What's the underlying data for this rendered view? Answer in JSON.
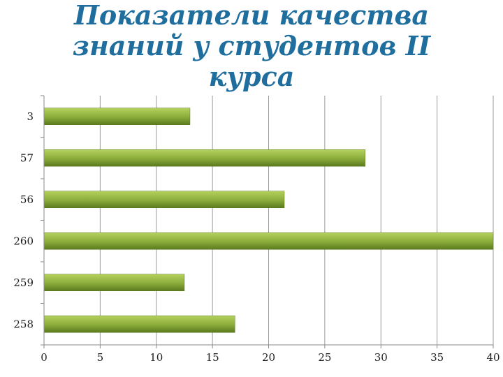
{
  "chart_data": {
    "type": "bar",
    "orientation": "horizontal",
    "title": "Показатели качества знаний у студентов II курса",
    "categories": [
      "3",
      "57",
      "56",
      "260",
      "259",
      "258"
    ],
    "values": [
      13,
      28.6,
      21.4,
      40,
      12.5,
      17
    ],
    "xlim": [
      0,
      40
    ],
    "xticks": [
      0,
      5,
      10,
      15,
      20,
      25,
      30,
      35,
      40
    ],
    "grid": "vertical",
    "legend": "none",
    "colors": {
      "bar_light": "#b5d15e",
      "bar_mid": "#8aab3a",
      "bar_dark": "#5b7a1e",
      "title": "#1f6e9e",
      "grid": "#9a9a9a"
    }
  }
}
